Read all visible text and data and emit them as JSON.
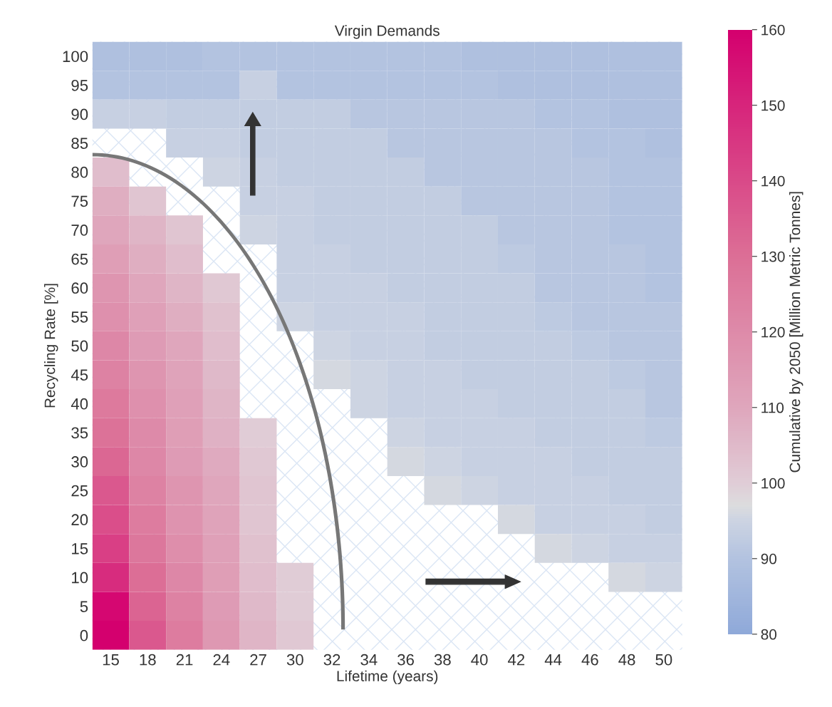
{
  "chart_data": {
    "type": "heatmap",
    "title": "Virgin Demands",
    "xlabel": "Lifetime (years)",
    "ylabel": "Recycling Rate [%]",
    "clabel": "Cumulative by 2050 [Million Metric Tonnes]",
    "categories": [
      "15",
      "18",
      "21",
      "24",
      "27",
      "30",
      "32",
      "34",
      "36",
      "38",
      "40",
      "42",
      "44",
      "46",
      "48",
      "50"
    ],
    "y_categories": [
      "100",
      "95",
      "90",
      "85",
      "80",
      "75",
      "70",
      "65",
      "60",
      "55",
      "50",
      "45",
      "40",
      "35",
      "30",
      "25",
      "20",
      "15",
      "10",
      "5",
      "0"
    ],
    "cells": [
      [
        89,
        89,
        89,
        90,
        90,
        90,
        90,
        90,
        90,
        90,
        89,
        89,
        89,
        89,
        89,
        89
      ],
      [
        90,
        90,
        90,
        90,
        94,
        90,
        90,
        90,
        90,
        90,
        90,
        89,
        89,
        89,
        89,
        89
      ],
      [
        94,
        94,
        93,
        93,
        93,
        93,
        93,
        91,
        91,
        91,
        91,
        91,
        90,
        90,
        89,
        89
      ],
      [
        null,
        null,
        94,
        94,
        93,
        93,
        93,
        93,
        91,
        91,
        91,
        91,
        91,
        90,
        90,
        89
      ],
      [
        104,
        null,
        null,
        95,
        94,
        93,
        93,
        93,
        93,
        91,
        91,
        91,
        91,
        91,
        90,
        90
      ],
      [
        108,
        102,
        null,
        null,
        94,
        94,
        93,
        93,
        93,
        93,
        91,
        91,
        91,
        91,
        90,
        90
      ],
      [
        110,
        106,
        102,
        null,
        95,
        94,
        93,
        93,
        93,
        93,
        93,
        91,
        91,
        91,
        90,
        90
      ],
      [
        113,
        108,
        104,
        null,
        null,
        94,
        94,
        93,
        93,
        93,
        93,
        92,
        91,
        91,
        91,
        90
      ],
      [
        116,
        110,
        106,
        101,
        null,
        94,
        94,
        94,
        93,
        93,
        93,
        93,
        91,
        91,
        91,
        90
      ],
      [
        118,
        112,
        108,
        103,
        null,
        95,
        94,
        94,
        94,
        93,
        93,
        93,
        92,
        91,
        91,
        91
      ],
      [
        121,
        114,
        110,
        104,
        null,
        null,
        95,
        94,
        94,
        93,
        93,
        93,
        93,
        92,
        91,
        91
      ],
      [
        123,
        116,
        111,
        105,
        null,
        null,
        96,
        95,
        94,
        94,
        93,
        93,
        93,
        93,
        92,
        91
      ],
      [
        126,
        118,
        112,
        106,
        null,
        null,
        null,
        95,
        94,
        94,
        94,
        93,
        93,
        93,
        93,
        91
      ],
      [
        129,
        120,
        113,
        107,
        100,
        null,
        null,
        null,
        95,
        94,
        94,
        94,
        93,
        93,
        93,
        92
      ],
      [
        132,
        121,
        114,
        109,
        101,
        null,
        null,
        null,
        96,
        95,
        94,
        94,
        94,
        93,
        93,
        93
      ],
      [
        136,
        123,
        116,
        110,
        102,
        null,
        null,
        null,
        null,
        96,
        95,
        94,
        94,
        94,
        93,
        93
      ],
      [
        139,
        125,
        117,
        111,
        102,
        null,
        null,
        null,
        null,
        null,
        null,
        96,
        94,
        94,
        94,
        93
      ],
      [
        143,
        127,
        119,
        112,
        103,
        null,
        null,
        null,
        null,
        null,
        null,
        null,
        96,
        95,
        94,
        94
      ],
      [
        148,
        130,
        121,
        113,
        104,
        100,
        null,
        null,
        null,
        null,
        null,
        null,
        null,
        null,
        96,
        95
      ],
      [
        158,
        133,
        123,
        114,
        105,
        100,
        null,
        null,
        null,
        null,
        null,
        null,
        null,
        null,
        null,
        null
      ],
      [
        160,
        136,
        125,
        115,
        106,
        101,
        null,
        null,
        null,
        null,
        null,
        null,
        null,
        null,
        null,
        null
      ]
    ],
    "clim": [
      80,
      160
    ],
    "cticks": [
      80,
      90,
      100,
      110,
      120,
      130,
      140,
      150,
      160
    ]
  }
}
